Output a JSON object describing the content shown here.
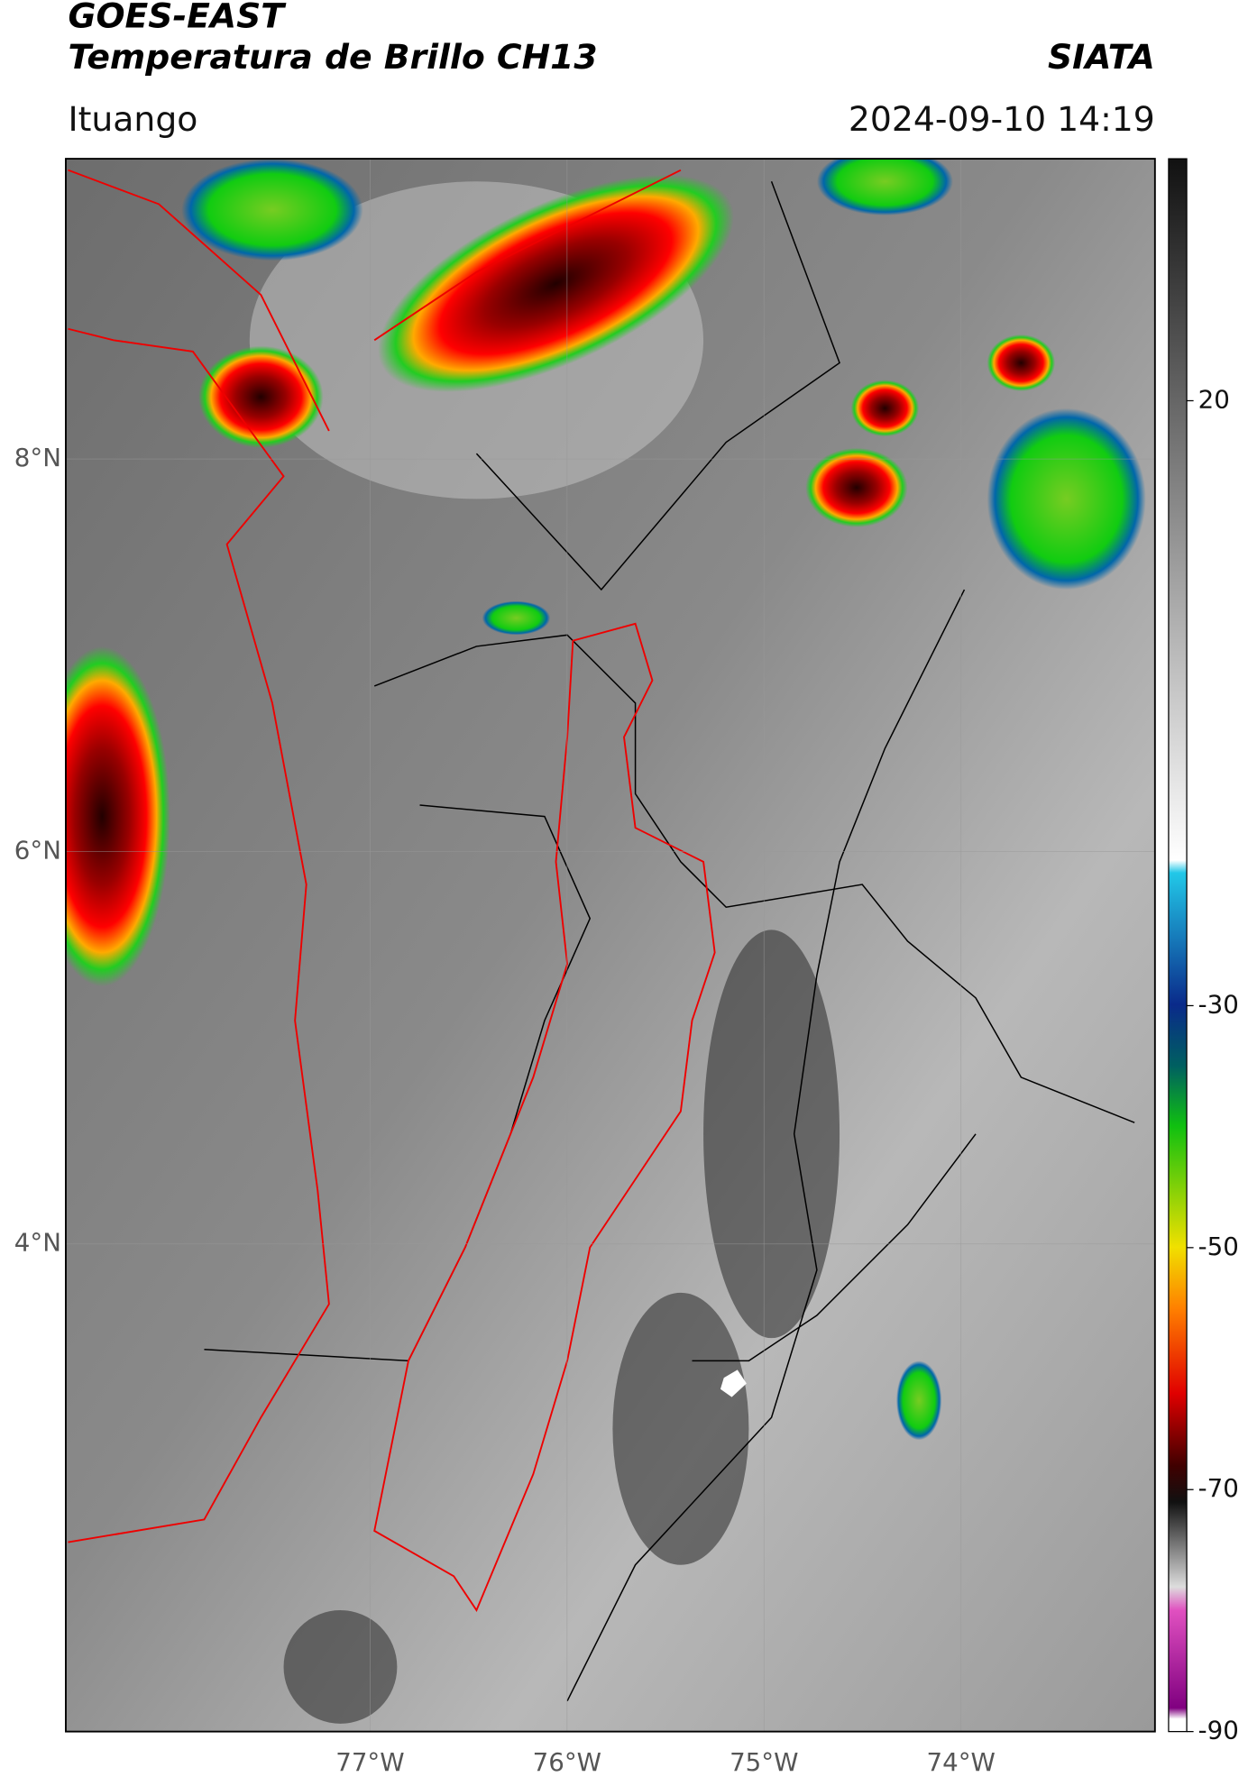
{
  "header": {
    "title": "GOES-EAST",
    "subtitle": "Temperatura de Brillo CH13",
    "source": "SIATA",
    "region": "Ituango",
    "datetime": "2024-09-10 14:19"
  },
  "map": {
    "xlim": [
      -78.545,
      -73.015
    ],
    "ylim": [
      1.515,
      9.53
    ],
    "xticks": [
      {
        "value": -77,
        "label": "77°W"
      },
      {
        "value": -76,
        "label": "76°W"
      },
      {
        "value": -75,
        "label": "75°W"
      },
      {
        "value": -74,
        "label": "74°W"
      }
    ],
    "yticks": [
      {
        "value": 8,
        "label": "8°N"
      },
      {
        "value": 6,
        "label": "6°N"
      },
      {
        "value": 4,
        "label": "4°N"
      }
    ]
  },
  "colorbar": {
    "lim": [
      -90,
      40
    ],
    "ticks": [
      20,
      -30,
      -50,
      -70,
      -90
    ]
  }
}
